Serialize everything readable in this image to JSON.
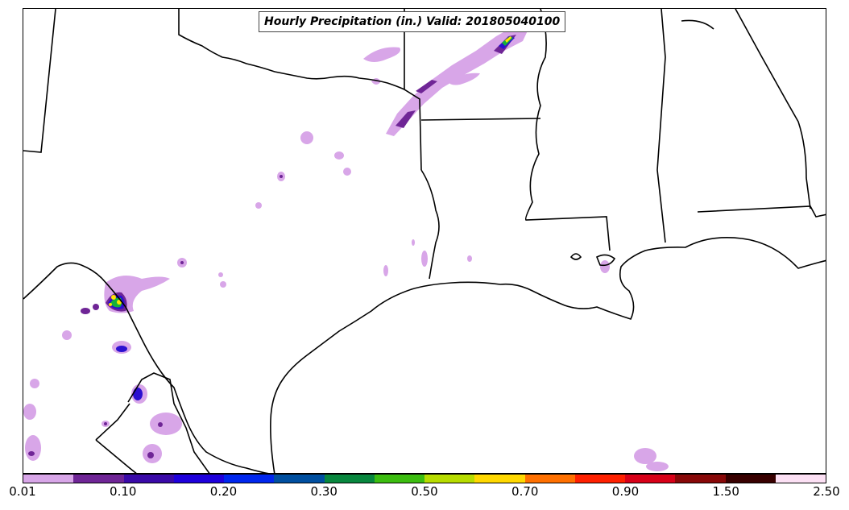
{
  "title": "Hourly Precipitation (in.) Valid: 201805040100",
  "colorbar": {
    "colors": [
      "#d8a6e8",
      "#6f2596",
      "#3a0aa8",
      "#1e00dc",
      "#0026ee",
      "#004fa0",
      "#08873e",
      "#3cbd10",
      "#b7dc00",
      "#ffd800",
      "#ff7000",
      "#ff2000",
      "#d80018",
      "#880808",
      "#380000",
      "#fce0f4"
    ],
    "labels": [
      "0.01",
      "0.10",
      "0.20",
      "0.30",
      "0.50",
      "0.70",
      "0.90",
      "1.50",
      "2.50"
    ]
  },
  "precip_levels": {
    "light": "#d8a6e8",
    "moderate": "#6f2596",
    "heavy": "#2b0fd0",
    "very_heavy": "#14b23a",
    "extreme": "#ffe400"
  }
}
